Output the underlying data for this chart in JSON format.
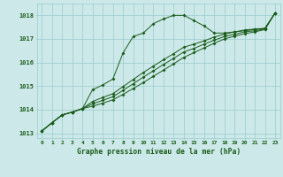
{
  "title": "Graphe pression niveau de la mer (hPa)",
  "xlabel_hours": [
    0,
    1,
    2,
    3,
    4,
    5,
    6,
    7,
    8,
    9,
    10,
    11,
    12,
    13,
    14,
    15,
    16,
    17,
    18,
    19,
    20,
    21,
    22,
    23
  ],
  "ylim": [
    1012.8,
    1018.5
  ],
  "yticks": [
    1013,
    1014,
    1015,
    1016,
    1017,
    1018
  ],
  "background_color": "#cce8e8",
  "grid_color": "#99cccc",
  "line_color": "#1a5c1a",
  "line1": [
    1013.1,
    1013.45,
    1013.78,
    1013.9,
    1014.05,
    1014.85,
    1015.05,
    1015.3,
    1016.4,
    1017.1,
    1017.25,
    1017.65,
    1017.85,
    1018.0,
    1018.0,
    1017.78,
    1017.55,
    1017.25,
    1017.25,
    1017.3,
    1017.35,
    1017.4,
    1017.45,
    1018.1
  ],
  "line2": [
    1013.1,
    1013.45,
    1013.78,
    1013.9,
    1014.05,
    1014.15,
    1014.28,
    1014.42,
    1014.65,
    1014.9,
    1015.15,
    1015.42,
    1015.68,
    1015.95,
    1016.22,
    1016.42,
    1016.62,
    1016.82,
    1017.0,
    1017.12,
    1017.22,
    1017.3,
    1017.4,
    1018.1
  ],
  "line3": [
    1013.1,
    1013.45,
    1013.78,
    1013.9,
    1014.05,
    1014.25,
    1014.4,
    1014.55,
    1014.82,
    1015.1,
    1015.38,
    1015.65,
    1015.92,
    1016.18,
    1016.45,
    1016.6,
    1016.78,
    1016.95,
    1017.1,
    1017.2,
    1017.3,
    1017.35,
    1017.42,
    1018.1
  ],
  "line4": [
    1013.1,
    1013.45,
    1013.78,
    1013.9,
    1014.05,
    1014.35,
    1014.52,
    1014.68,
    1014.98,
    1015.28,
    1015.58,
    1015.85,
    1016.12,
    1016.38,
    1016.65,
    1016.78,
    1016.92,
    1017.08,
    1017.2,
    1017.3,
    1017.38,
    1017.42,
    1017.45,
    1018.1
  ],
  "markersize": 2.0,
  "linewidth": 0.7
}
